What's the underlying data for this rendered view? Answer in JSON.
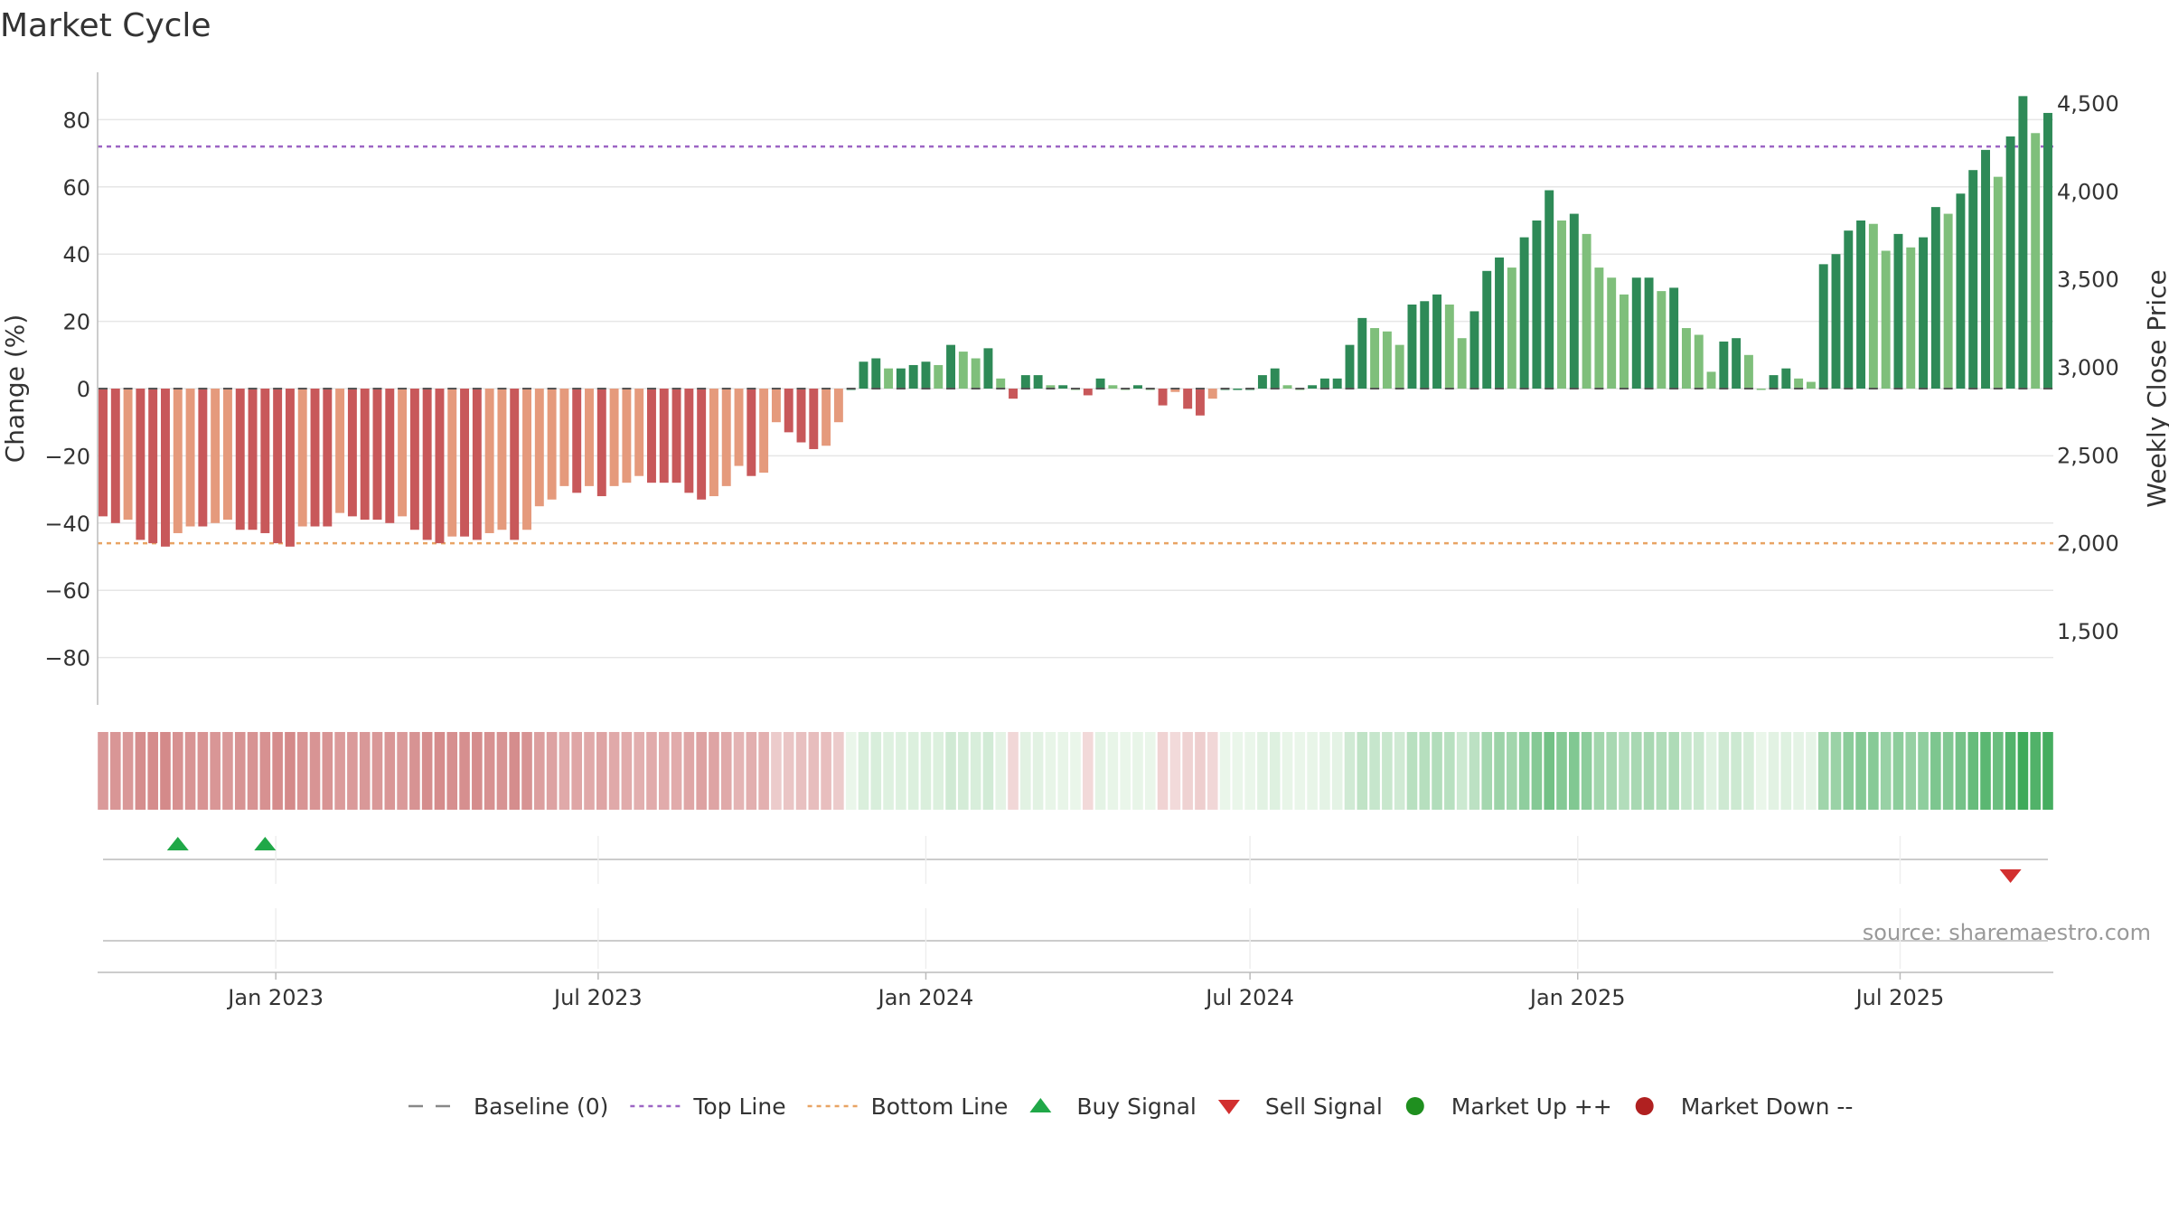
{
  "chart_data": {
    "type": "bar",
    "title": "Market Cycle",
    "source": "source: sharemaestro.com",
    "y_left": {
      "label": "Change (%)",
      "range": [
        -95,
        95
      ],
      "ticks": [
        80,
        60,
        40,
        20,
        0,
        -20,
        -40,
        -60,
        -80
      ],
      "tick_labels": [
        "80",
        "60",
        "40",
        "20",
        "0",
        "−20",
        "−40",
        "−60",
        "−80"
      ]
    },
    "y_right": {
      "label": "Weekly Close Price",
      "ticks": [
        4500,
        4000,
        3500,
        3000,
        2500,
        2000,
        1500
      ],
      "tick_labels": [
        "4,500",
        "4,000",
        "3,500",
        "3,000",
        "2,500",
        "2,000",
        "1,500"
      ]
    },
    "x": {
      "start": "2022-09-26",
      "end": "2025-09-22",
      "ticks": [
        "2023-01-01",
        "2023-07-01",
        "2024-01-01",
        "2024-07-01",
        "2025-01-01",
        "2025-07-01"
      ],
      "tick_labels": [
        "Jan 2023",
        "Jul 2023",
        "Jan 2024",
        "Jul 2024",
        "Jan 2025",
        "Jul 2025"
      ]
    },
    "top_line": 72,
    "bottom_line": -46,
    "values": [
      -38,
      -40,
      -39,
      -45,
      -46,
      -47,
      -43,
      -41,
      -41,
      -40,
      -39,
      -42,
      -42,
      -43,
      -46,
      -47,
      -41,
      -41,
      -41,
      -37,
      -38,
      -39,
      -39,
      -40,
      -38,
      -42,
      -45,
      -46,
      -44,
      -44,
      -45,
      -43,
      -42,
      -45,
      -42,
      -35,
      -33,
      -29,
      -31,
      -29,
      -32,
      -29,
      -28,
      -26,
      -28,
      -28,
      -28,
      -31,
      -33,
      -32,
      -29,
      -23,
      -26,
      -25,
      -10,
      -13,
      -16,
      -18,
      -17,
      -10,
      0,
      8,
      9,
      6,
      6,
      7,
      8,
      7,
      13,
      11,
      9,
      12,
      3,
      -3,
      4,
      4,
      1,
      1,
      0,
      -2,
      3,
      1,
      0,
      1,
      0,
      -5,
      -1,
      -6,
      -8,
      -3,
      0,
      0,
      0,
      4,
      6,
      1,
      0,
      1,
      3,
      3,
      13,
      21,
      18,
      17,
      13,
      25,
      26,
      28,
      25,
      15,
      23,
      35,
      39,
      36,
      45,
      50,
      59,
      50,
      52,
      46,
      36,
      33,
      28,
      33,
      33,
      29,
      30,
      18,
      16,
      5,
      14,
      15,
      10,
      0,
      4,
      6,
      3,
      2,
      37,
      40,
      47,
      50,
      49,
      41,
      46,
      42,
      45,
      54,
      52,
      58,
      65,
      71,
      63,
      75,
      87,
      76,
      82
    ],
    "buy_signals": [
      "2022-11-07",
      "2022-12-26"
    ],
    "sell_signals": [
      "2025-09-01"
    ],
    "colors": {
      "strong_down": "#c8585a",
      "weak_down": "#e59a7c",
      "strong_up": "#2e8a57",
      "weak_up": "#7fbf7b",
      "top_line": "#9c64c4",
      "bottom_line": "#e8a464",
      "buy": "#20a848",
      "sell": "#d22f2f",
      "market_up": "#1f8f1f",
      "market_down": "#b02020",
      "baseline": "#888888",
      "grid": "#e6e6e6"
    },
    "legend": {
      "placement": "bottom-center",
      "items": [
        {
          "name": "Baseline (0)",
          "kind": "baseline"
        },
        {
          "name": "Top Line",
          "kind": "top"
        },
        {
          "name": "Bottom Line",
          "kind": "bottom"
        },
        {
          "name": "Buy Signal",
          "kind": "buy"
        },
        {
          "name": "Sell Signal",
          "kind": "sell"
        },
        {
          "name": "Market Up ++",
          "kind": "mup"
        },
        {
          "name": "Market Down --",
          "kind": "mdown"
        }
      ]
    }
  }
}
